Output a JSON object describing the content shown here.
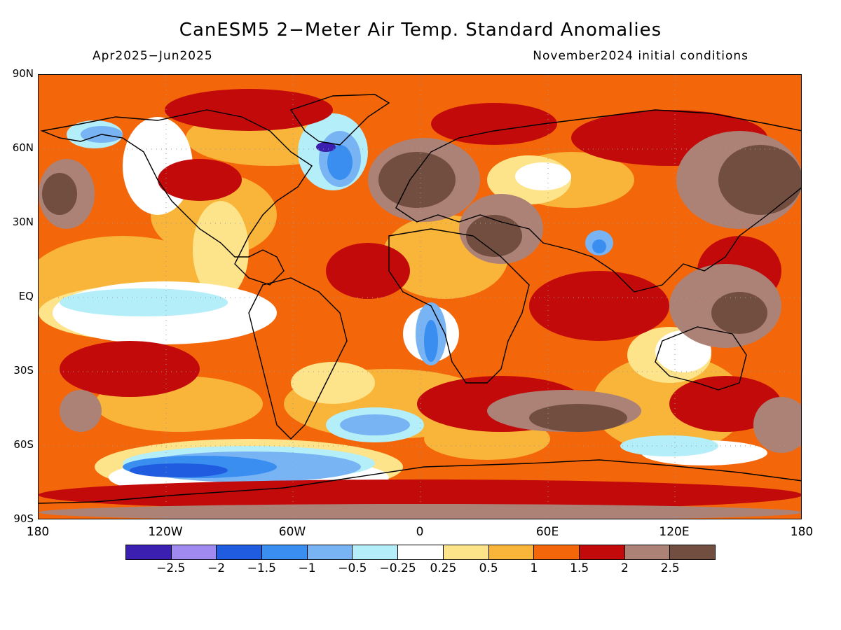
{
  "title": "CanESM5 2−Meter Air Temp. Standard Anomalies",
  "period": "Apr2025−Jun2025",
  "init": "November2024 initial conditions",
  "lat_labels": [
    "90N",
    "60N",
    "30N",
    "EQ",
    "30S",
    "60S",
    "90S"
  ],
  "lon_labels": [
    "180",
    "120W",
    "60W",
    "0",
    "60E",
    "120E",
    "180"
  ],
  "legend": {
    "colors": [
      "#3a1fb0",
      "#a08af0",
      "#1f5ce0",
      "#3a8ef0",
      "#78b4f4",
      "#b4eef8",
      "#ffffff",
      "#fde48a",
      "#f9b43a",
      "#f4660a",
      "#c20a0a",
      "#ad8276",
      "#724e40"
    ],
    "labels": [
      "−2.5",
      "−2",
      "−1.5",
      "−1",
      "−0.5",
      "−0.25",
      "0.25",
      "0.5",
      "1",
      "1.5",
      "2",
      "2.5"
    ]
  },
  "colors": {
    "background": "#f4660a"
  }
}
